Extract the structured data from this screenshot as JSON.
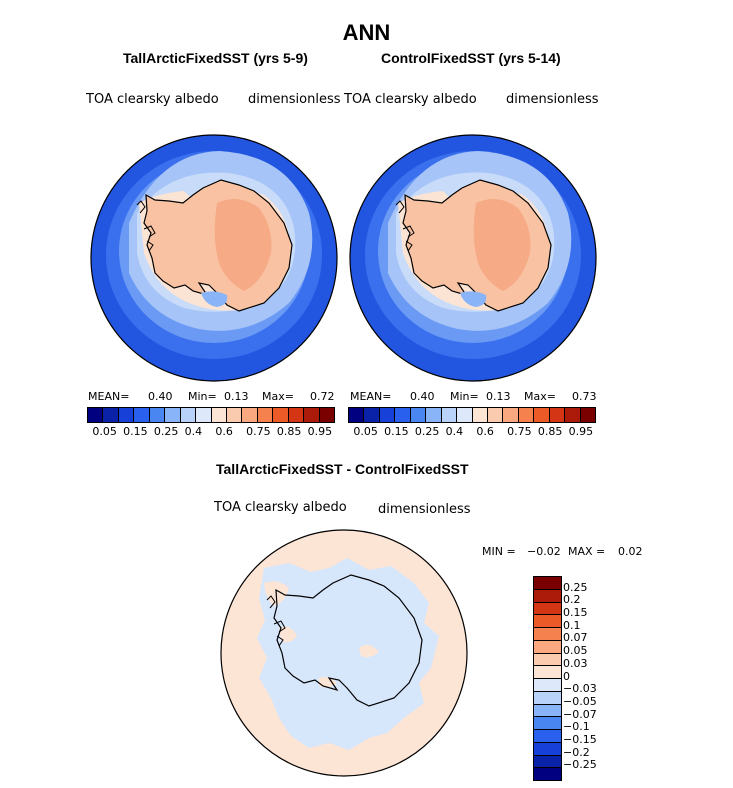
{
  "title": "ANN",
  "panel_left": {
    "title": "TallArcticFixedSST (yrs 5-9)",
    "variable": "TOA clearsky albedo",
    "units": "dimensionless",
    "mean_label": "MEAN=",
    "mean": "0.40",
    "min_label": "Min=",
    "min": "0.13",
    "max_label": "Max=",
    "max": "0.72"
  },
  "panel_right": {
    "title": "ControlFixedSST (yrs 5-14)",
    "variable": "TOA clearsky albedo",
    "units": "dimensionless",
    "mean_label": "MEAN=",
    "mean": "0.40",
    "min_label": "Min=",
    "min": "0.13",
    "max_label": "Max=",
    "max": "0.73"
  },
  "colorbar_top": {
    "labels": [
      "0.05",
      "0.15",
      "0.25",
      "0.4",
      "0.6",
      "0.75",
      "0.85",
      "0.95"
    ],
    "colors": [
      "#000080",
      "#0a22a8",
      "#1640d8",
      "#2a60ee",
      "#4a86f2",
      "#8ab4f8",
      "#b8d2fa",
      "#dde9fb",
      "#fde5d6",
      "#fbcbb0",
      "#f9a880",
      "#f5814f",
      "#ec5a28",
      "#d43515",
      "#ac1a0a",
      "#7a0000"
    ]
  },
  "panel_diff": {
    "title": "TallArcticFixedSST - ControlFixedSST",
    "variable": "TOA clearsky albedo",
    "units": "dimensionless",
    "min_label": "MIN =",
    "min": "−0.02",
    "max_label": "MAX =",
    "max": "0.02"
  },
  "colorbar_diff": {
    "labels": [
      "0.25",
      "0.2",
      "0.15",
      "0.1",
      "0.07",
      "0.05",
      "0.03",
      "0",
      "−0.03",
      "−0.05",
      "−0.07",
      "−0.1",
      "−0.15",
      "−0.2",
      "−0.25"
    ],
    "colors": [
      "#7a0000",
      "#ac1a0a",
      "#d43515",
      "#ec5a28",
      "#f5814f",
      "#f9a880",
      "#fbcbb0",
      "#fde5d6",
      "#dde9fb",
      "#b8d2fa",
      "#8ab4f8",
      "#4a86f2",
      "#2a60ee",
      "#1640d8",
      "#0a22a8",
      "#000080"
    ]
  },
  "map_colors": {
    "ocean_deep": "#2255e0",
    "ocean_mid": "#3a70ee",
    "ocean_light": "#6a9af4",
    "ocean_pale": "#a6c4f8",
    "sea_ice": "#c8dcfa",
    "ice_pale": "#fce4d4",
    "continent": "#f9c3a3",
    "plateau": "#f6aa86",
    "shelf_blue": "#8ab4f8",
    "diff_bg": "#fde5d6",
    "diff_blue": "#d6e6fb"
  }
}
